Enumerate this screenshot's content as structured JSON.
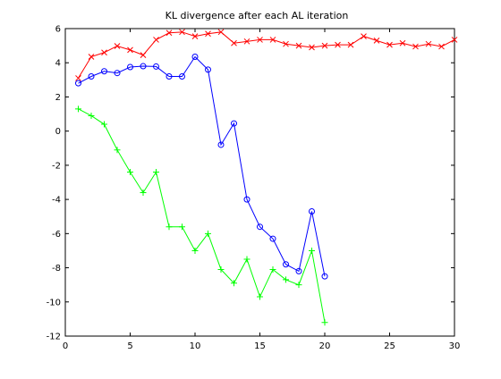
{
  "chart_data": {
    "type": "line",
    "title": "KL divergence after each AL iteration",
    "xlabel": "",
    "ylabel": "",
    "xlim": [
      0,
      30
    ],
    "ylim": [
      -12,
      6
    ],
    "xticks": [
      0,
      5,
      10,
      15,
      20,
      25,
      30
    ],
    "yticks": [
      -12,
      -10,
      -8,
      -6,
      -4,
      -2,
      0,
      2,
      4,
      6
    ],
    "grid": false,
    "legend": "none",
    "series": [
      {
        "color": "#ff0000",
        "marker": "x",
        "x": [
          1,
          2,
          3,
          4,
          5,
          6,
          7,
          8,
          9,
          10,
          11,
          12,
          13,
          14,
          15,
          16,
          17,
          18,
          19,
          20,
          21,
          22,
          23,
          24,
          25,
          26,
          27,
          28,
          29,
          30
        ],
        "y": [
          3.1,
          4.35,
          4.6,
          4.98,
          4.75,
          4.45,
          5.35,
          5.75,
          5.8,
          5.55,
          5.7,
          5.8,
          5.15,
          5.25,
          5.35,
          5.35,
          5.1,
          5.0,
          4.9,
          5.0,
          5.05,
          5.05,
          5.55,
          5.3,
          5.05,
          5.15,
          4.95,
          5.1,
          4.95,
          5.35
        ]
      },
      {
        "color": "#0000ff",
        "marker": "o",
        "x": [
          1,
          2,
          3,
          4,
          5,
          6,
          7,
          8,
          9,
          10,
          11,
          12,
          13,
          14,
          15,
          16,
          17,
          18,
          19,
          20
        ],
        "y": [
          2.8,
          3.2,
          3.5,
          3.4,
          3.75,
          3.8,
          3.78,
          3.2,
          3.2,
          4.35,
          3.6,
          -0.8,
          0.45,
          -4.0,
          -5.6,
          -6.3,
          -7.8,
          -8.2,
          -4.7,
          -8.5
        ]
      },
      {
        "color": "#00ff00",
        "marker": "+",
        "x": [
          1,
          2,
          3,
          4,
          5,
          6,
          7,
          8,
          9,
          10,
          11,
          12,
          13,
          14,
          15,
          16,
          17,
          18,
          19,
          20
        ],
        "y": [
          1.3,
          0.9,
          0.4,
          -1.1,
          -2.4,
          -3.6,
          -2.4,
          -5.6,
          -5.6,
          -7.0,
          -6.0,
          -8.1,
          -8.9,
          -7.5,
          -9.7,
          -8.1,
          -8.7,
          -9.0,
          -7.0,
          -11.2
        ]
      }
    ]
  }
}
